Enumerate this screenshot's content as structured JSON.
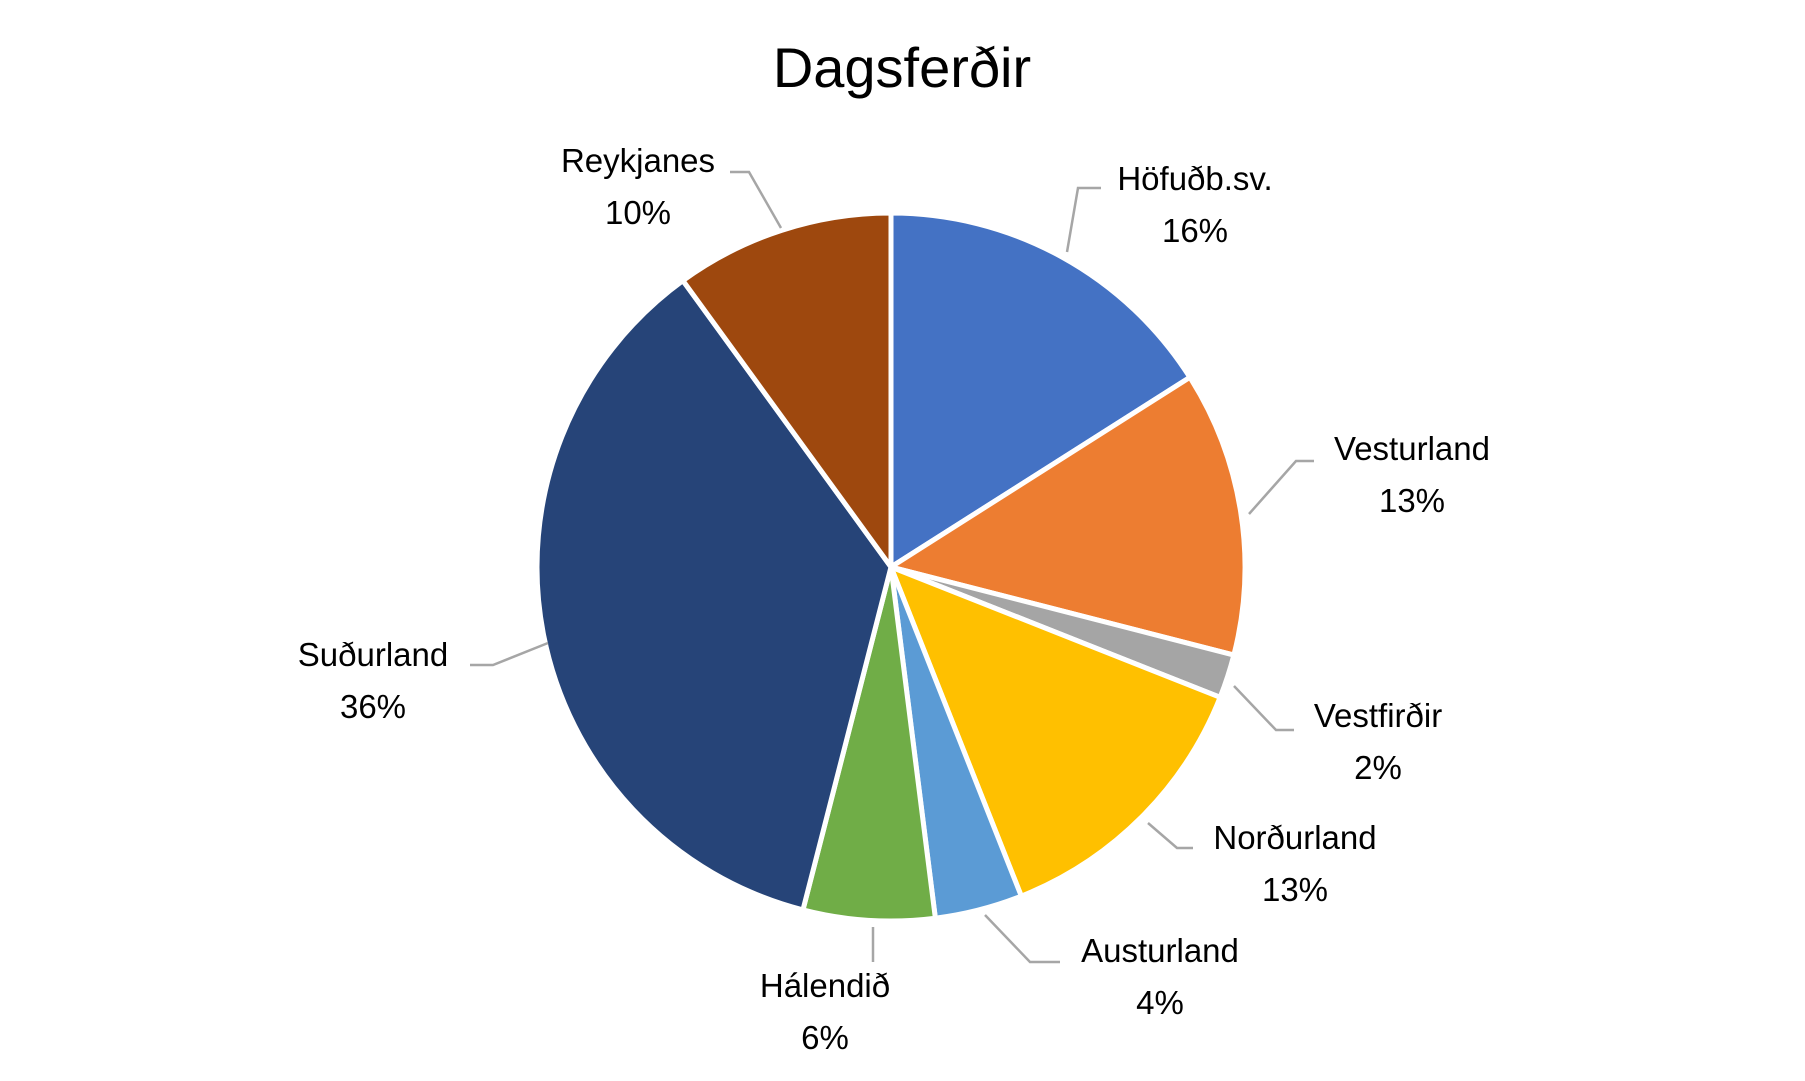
{
  "chart_data": {
    "type": "pie",
    "title": "Dagsferðir",
    "slices": [
      {
        "label": "Höfuðb.sv.",
        "percent_label": "16%",
        "value": 16,
        "color": "#4472C4"
      },
      {
        "label": "Vesturland",
        "percent_label": "13%",
        "value": 13,
        "color": "#ED7D31"
      },
      {
        "label": "Vestfirðir",
        "percent_label": "2%",
        "value": 2,
        "color": "#A5A5A5"
      },
      {
        "label": "Norðurland",
        "percent_label": "13%",
        "value": 13,
        "color": "#FFC000"
      },
      {
        "label": "Austurland",
        "percent_label": "4%",
        "value": 4,
        "color": "#5B9BD5"
      },
      {
        "label": "Hálendið",
        "percent_label": "6%",
        "value": 6,
        "color": "#70AD47"
      },
      {
        "label": "Suðurland",
        "percent_label": "36%",
        "value": 36,
        "color": "#264478"
      },
      {
        "label": "Reykjanes",
        "percent_label": "10%",
        "value": 10,
        "color": "#9E480E"
      }
    ],
    "start_angle_deg": 0,
    "direction": "clockwise",
    "legend": "none",
    "data_labels": "outside-with-leader-lines"
  }
}
